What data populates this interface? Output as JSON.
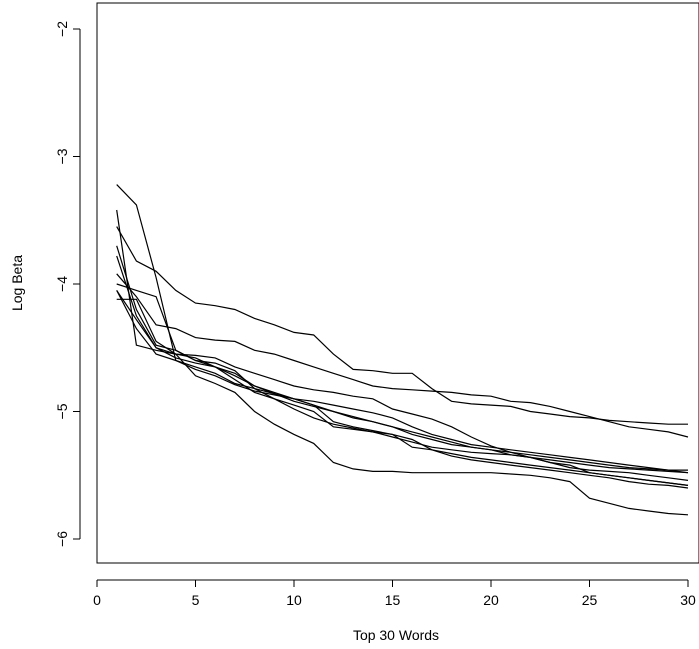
{
  "chart_data": {
    "type": "line",
    "title": "",
    "xlabel": "Top 30 Words",
    "ylabel": "Log Beta",
    "xlim": [
      0,
      30
    ],
    "ylim": [
      -6.2,
      -1.8
    ],
    "xticks": [
      0,
      5,
      10,
      15,
      20,
      25,
      30
    ],
    "yticks": [
      -6,
      -5,
      -4,
      -3,
      -2
    ],
    "grid": false,
    "legend": "none",
    "line_color": "#000000",
    "x": [
      1,
      2,
      3,
      4,
      5,
      6,
      7,
      8,
      9,
      10,
      11,
      12,
      13,
      14,
      15,
      16,
      17,
      18,
      19,
      20,
      21,
      22,
      23,
      24,
      25,
      26,
      27,
      28,
      29,
      30
    ],
    "series": [
      {
        "values": [
          -3.22,
          -3.38,
          -3.95,
          -4.6,
          -4.67,
          -4.72,
          -4.79,
          -4.84,
          -4.87,
          -4.9,
          -4.92,
          -4.95,
          -4.98,
          -5.01,
          -5.05,
          -5.12,
          -5.18,
          -5.22,
          -5.26,
          -5.28,
          -5.3,
          -5.32,
          -5.34,
          -5.36,
          -5.38,
          -5.4,
          -5.42,
          -5.44,
          -5.46,
          -5.48
        ]
      },
      {
        "values": [
          -3.55,
          -3.82,
          -3.9,
          -4.05,
          -4.15,
          -4.17,
          -4.2,
          -4.27,
          -4.32,
          -4.38,
          -4.4,
          -4.55,
          -4.67,
          -4.68,
          -4.7,
          -4.7,
          -4.82,
          -4.92,
          -4.94,
          -4.95,
          -4.96,
          -5.0,
          -5.02,
          -5.04,
          -5.05,
          -5.07,
          -5.08,
          -5.09,
          -5.1,
          -5.1
        ]
      },
      {
        "values": [
          -3.42,
          -4.48,
          -4.52,
          -4.55,
          -4.56,
          -4.58,
          -4.65,
          -4.7,
          -4.75,
          -4.8,
          -4.83,
          -4.85,
          -4.88,
          -4.9,
          -4.98,
          -5.02,
          -5.06,
          -5.12,
          -5.2,
          -5.27,
          -5.32,
          -5.36,
          -5.4,
          -5.44,
          -5.46,
          -5.47,
          -5.48,
          -5.5,
          -5.52,
          -5.54
        ]
      },
      {
        "values": [
          -3.7,
          -4.2,
          -4.48,
          -4.52,
          -4.6,
          -4.62,
          -4.68,
          -4.82,
          -4.9,
          -4.98,
          -5.05,
          -5.1,
          -5.13,
          -5.16,
          -5.2,
          -5.24,
          -5.28,
          -5.3,
          -5.32,
          -5.33,
          -5.34,
          -5.36,
          -5.38,
          -5.4,
          -5.42,
          -5.44,
          -5.45,
          -5.46,
          -5.47,
          -5.48
        ]
      },
      {
        "values": [
          -3.92,
          -4.1,
          -4.32,
          -4.35,
          -4.42,
          -4.44,
          -4.45,
          -4.52,
          -4.55,
          -4.6,
          -4.65,
          -4.7,
          -4.75,
          -4.8,
          -4.82,
          -4.83,
          -4.84,
          -4.85,
          -4.87,
          -4.88,
          -4.92,
          -4.93,
          -4.96,
          -5.0,
          -5.04,
          -5.08,
          -5.12,
          -5.14,
          -5.16,
          -5.2
        ]
      },
      {
        "values": [
          -3.78,
          -4.25,
          -4.5,
          -4.55,
          -4.58,
          -4.65,
          -4.72,
          -4.8,
          -4.85,
          -4.9,
          -4.95,
          -5.08,
          -5.12,
          -5.15,
          -5.18,
          -5.22,
          -5.3,
          -5.35,
          -5.38,
          -5.4,
          -5.42,
          -5.44,
          -5.46,
          -5.48,
          -5.5,
          -5.52,
          -5.55,
          -5.57,
          -5.58,
          -5.6
        ]
      },
      {
        "values": [
          -4.0,
          -4.05,
          -4.1,
          -4.52,
          -4.6,
          -4.65,
          -4.75,
          -4.85,
          -4.9,
          -4.95,
          -5.0,
          -5.12,
          -5.14,
          -5.16,
          -5.18,
          -5.28,
          -5.3,
          -5.33,
          -5.36,
          -5.38,
          -5.4,
          -5.42,
          -5.44,
          -5.46,
          -5.48,
          -5.5,
          -5.52,
          -5.54,
          -5.56,
          -5.58
        ]
      },
      {
        "values": [
          -4.05,
          -4.35,
          -4.55,
          -4.6,
          -4.65,
          -4.7,
          -4.78,
          -4.82,
          -4.86,
          -4.9,
          -4.95,
          -5.0,
          -5.05,
          -5.08,
          -5.12,
          -5.18,
          -5.22,
          -5.26,
          -5.28,
          -5.3,
          -5.34,
          -5.36,
          -5.4,
          -5.42,
          -5.48,
          -5.5,
          -5.52,
          -5.54,
          -5.56,
          -5.58
        ]
      },
      {
        "values": [
          -4.12,
          -4.12,
          -4.45,
          -4.55,
          -4.72,
          -4.78,
          -4.85,
          -5.0,
          -5.1,
          -5.18,
          -5.25,
          -5.4,
          -5.45,
          -5.47,
          -5.47,
          -5.48,
          -5.48,
          -5.48,
          -5.48,
          -5.48,
          -5.49,
          -5.5,
          -5.52,
          -5.55,
          -5.68,
          -5.72,
          -5.76,
          -5.78,
          -5.8,
          -5.81
        ]
      },
      {
        "values": [
          -4.05,
          -4.28,
          -4.5,
          -4.58,
          -4.62,
          -4.65,
          -4.7,
          -4.8,
          -4.86,
          -4.92,
          -4.96,
          -5.0,
          -5.04,
          -5.08,
          -5.12,
          -5.16,
          -5.2,
          -5.24,
          -5.28,
          -5.3,
          -5.32,
          -5.34,
          -5.36,
          -5.38,
          -5.4,
          -5.42,
          -5.44,
          -5.45,
          -5.46,
          -5.46
        ]
      }
    ]
  }
}
